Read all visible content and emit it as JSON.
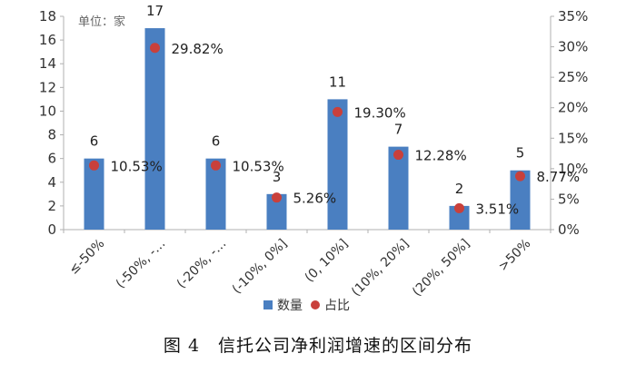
{
  "caption": "图 4　信托公司净利润增速的区间分布",
  "chart_data": {
    "type": "bar",
    "unit_label": "单位：家",
    "categories": [
      "≤-50%",
      "(-50%, -…",
      "(-20%, -…",
      "(-10%, 0%]",
      "(0, 10%]",
      "(10%, 20%]",
      "(20%, 50%]",
      ">50%"
    ],
    "series": [
      {
        "name": "数量",
        "axis": "left",
        "mark": "bar",
        "color": "#4a7fc1",
        "values": [
          6,
          17,
          6,
          3,
          11,
          7,
          2,
          5
        ],
        "labels": [
          "6",
          "17",
          "6",
          "3",
          "11",
          "7",
          "2",
          "5"
        ]
      },
      {
        "name": "占比",
        "axis": "right",
        "mark": "dot",
        "color": "#c9403b",
        "values": [
          10.53,
          29.82,
          10.53,
          5.26,
          19.3,
          12.28,
          3.51,
          8.77
        ],
        "labels": [
          "10.53%",
          "29.82%",
          "10.53%",
          "5.26%",
          "19.30%",
          "12.28%",
          "3.51%",
          "8.77%"
        ]
      }
    ],
    "y_left": {
      "min": 0,
      "max": 18,
      "ticks": [
        "0",
        "2",
        "4",
        "6",
        "8",
        "10",
        "12",
        "14",
        "16",
        "18"
      ]
    },
    "y_right": {
      "min": 0,
      "max": 35,
      "ticks": [
        "0%",
        "5%",
        "10%",
        "15%",
        "20%",
        "25%",
        "30%",
        "35%"
      ]
    },
    "legend_position": "bottom",
    "grid": false
  }
}
